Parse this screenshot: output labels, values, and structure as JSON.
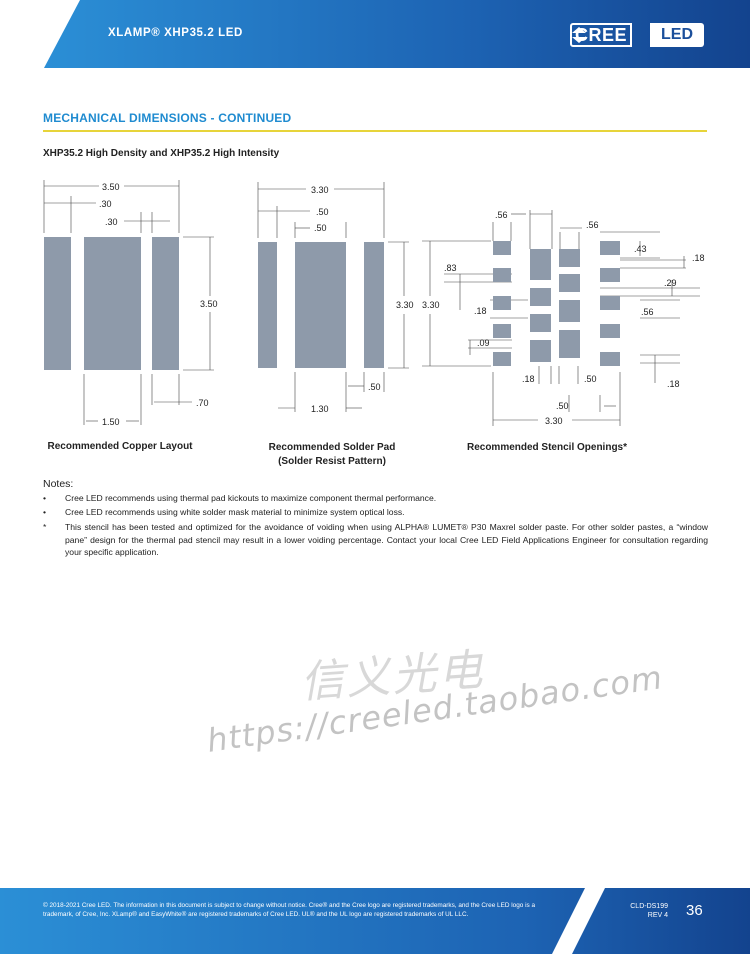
{
  "header": {
    "title": "XLAMP® XHP35.2 LED",
    "logo_left": "CREE",
    "logo_right": "LED",
    "brand_color": "#1b4f9b"
  },
  "section": {
    "title": "MECHANICAL DIMENSIONS - CONTINUED",
    "subtitle": "XHP35.2 High Density and XHP35.2 High Intensity"
  },
  "copper_layout": {
    "caption": "Recommended Copper Layout",
    "dims": [
      "3.50",
      ".30",
      ".30",
      "3.50",
      ".70",
      "1.50"
    ]
  },
  "solder_pad": {
    "caption_line1": "Recommended Solder Pad",
    "caption_line2": "(Solder Resist Pattern)",
    "dims": [
      "3.30",
      ".50",
      ".50",
      "3.30",
      ".50",
      "1.30"
    ]
  },
  "stencil": {
    "caption": "Recommended Stencil Openings*",
    "dims": [
      ".56",
      ".56",
      ".43",
      ".18",
      ".83",
      ".29",
      "3.30",
      ".18",
      ".56",
      ".09",
      ".18",
      ".50",
      ".18",
      ".50",
      "3.30"
    ]
  },
  "notes": {
    "title": "Notes:",
    "bullet": "•",
    "asterisk": "*",
    "items": [
      "Cree LED recommends using thermal pad kickouts to maximize component thermal performance.",
      "Cree LED recommends using white solder mask material to minimize system optical loss."
    ],
    "star_note": "This stencil has been tested and optimized for the avoidance of voiding when using ALPHA® LUMET® P30 Maxrel solder paste. For other solder pastes, a “window pane” design for the thermal pad stencil may result in a lower voiding percentage. Contact your local Cree LED Field Applications Engineer for consultation regarding your specific application."
  },
  "watermark": {
    "line1": "信义光电",
    "line2": "https://creeled.taobao.com"
  },
  "footer": {
    "legal": "© 2018-2021 Cree LED. The information in this document is subject to change without notice. Cree® and the Cree logo are registered trademarks, and the Cree LED logo is a trademark, of Cree, Inc. XLamp® and EasyWhite® are registered trademarks of Cree LED. UL® and the UL logo are registered trademarks of UL LLC.",
    "doc_id": "CLD-DS199",
    "rev": "REV 4",
    "page": "36"
  },
  "colors": {
    "accent_blue": "#1f8bd0",
    "rule_yellow": "#e7d43a",
    "pad_gray": "#8e9aaa"
  }
}
